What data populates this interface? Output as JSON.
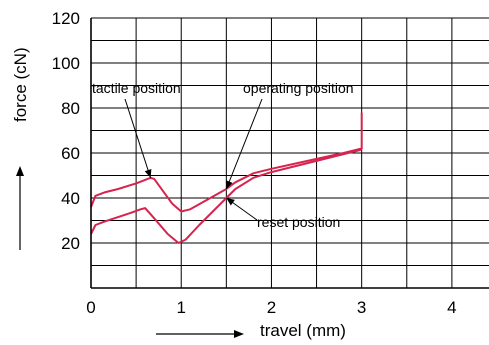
{
  "chart_data": {
    "type": "line",
    "xlabel": "travel (mm)",
    "ylabel": "force (cN)",
    "xlim": [
      0,
      4.5
    ],
    "ylim": [
      0,
      120
    ],
    "x_ticks": [
      "0",
      "1",
      "2",
      "3",
      "4"
    ],
    "y_ticks": [
      "20",
      "40",
      "60",
      "80",
      "100",
      "120"
    ],
    "grid": true,
    "line_color": "#d6244f",
    "series": [
      {
        "x": [
          0,
          0.05,
          0.15,
          0.3,
          0.5,
          0.66,
          0.7,
          0.8,
          0.9,
          1.0,
          1.1,
          1.3,
          1.5,
          1.6,
          1.8,
          2.0,
          2.4,
          2.8,
          3.0,
          3.0
        ],
        "y": [
          36,
          41,
          42.5,
          44,
          46.5,
          49,
          48.5,
          43,
          37.5,
          34,
          35,
          39.5,
          44,
          47,
          51,
          53,
          56.5,
          60,
          62,
          78
        ]
      },
      {
        "x": [
          0,
          0.05,
          0.15,
          0.3,
          0.45,
          0.55,
          0.6,
          0.7,
          0.85,
          0.97,
          1.05,
          1.2,
          1.4,
          1.6,
          1.8,
          2.0,
          2.4,
          2.8,
          3.0
        ],
        "y": [
          24,
          28,
          29.5,
          31.5,
          33.5,
          35,
          35.5,
          31,
          24,
          20,
          21.5,
          28,
          36,
          44,
          49,
          51.5,
          55.5,
          59.5,
          61.5
        ]
      }
    ],
    "annotations": [
      {
        "label": "tactile position",
        "point": [
          0.66,
          49
        ]
      },
      {
        "label": "operating position",
        "point": [
          1.5,
          44
        ]
      },
      {
        "label": "reset position",
        "point": [
          1.5,
          40
        ]
      }
    ]
  }
}
